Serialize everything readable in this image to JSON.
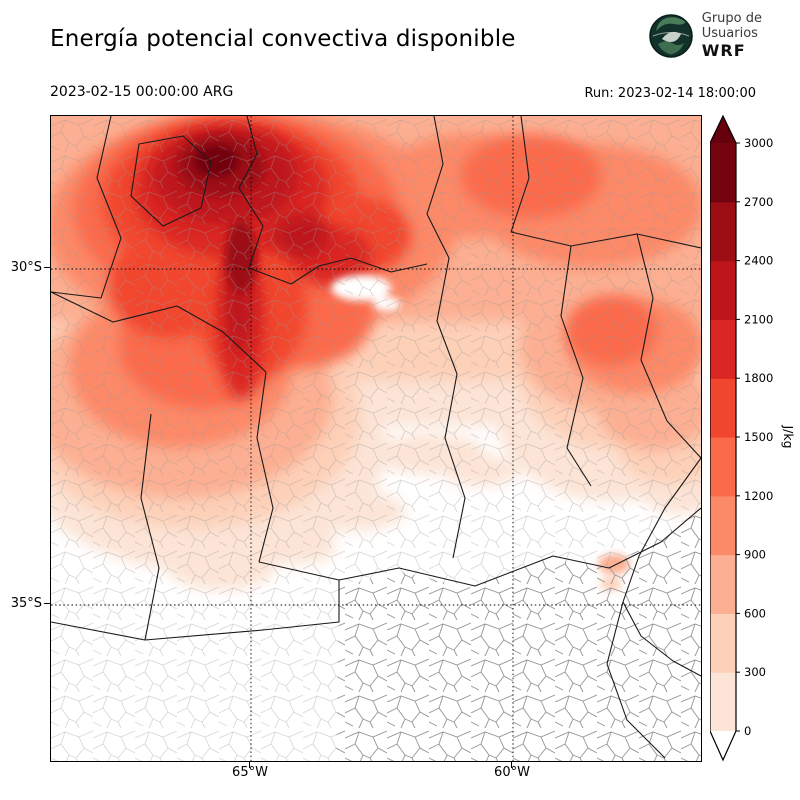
{
  "header": {
    "title": "Energía potencial convectiva disponible",
    "valid_time": "2023-02-15 00:00:00 ARG",
    "run_time": "Run: 2023-02-14 18:00:00",
    "logo": {
      "line1": "Grupo de",
      "line2": "Usuarios",
      "line3": "WRF"
    }
  },
  "map": {
    "y_tick_labels": [
      "30°S",
      "35°S"
    ],
    "x_tick_labels": [
      "65°W",
      "60°W"
    ]
  },
  "colorbar": {
    "label": "J/kg",
    "ticks": [
      0,
      300,
      600,
      900,
      1200,
      1500,
      1800,
      2100,
      2400,
      2700,
      3000
    ],
    "max_level": 3000,
    "segment_colors": [
      "#fce4d6",
      "#fdd0b8",
      "#fcaf92",
      "#fc8968",
      "#fb6b4b",
      "#f1462f",
      "#da2723",
      "#bd151a",
      "#9c0d14",
      "#73040f"
    ],
    "under_color": "#ffffff",
    "over_color": "#67000d"
  },
  "chart_data": {
    "type": "heatmap",
    "title": "Energía potencial convectiva disponible",
    "variable": "CAPE (convective available potential energy)",
    "units": "J/kg",
    "valid_time": "2023-02-15 00:00:00 ARG",
    "model_run": "Run: 2023-02-14 18:00:00",
    "contour_levels": [
      0,
      300,
      600,
      900,
      1200,
      1500,
      1800,
      2100,
      2400,
      2700,
      3000
    ],
    "colormap": "Reds (white = 0 to dark red = 3000+, arrow extensions both ends)",
    "x_axis": {
      "tick_labels": [
        "65°W",
        "60°W"
      ],
      "gridlines": "dotted"
    },
    "y_axis": {
      "tick_labels": [
        "30°S",
        "35°S"
      ],
      "gridlines": "dotted"
    },
    "legend_position": "vertical colorbar, right side",
    "description": "Filled-contour CAPE map over central-northern Argentina with province and department boundaries. Maximum CAPE above 3000 J/kg in the northwest (around 28-30°S, 65-66°W) with a dark-red tongue extending south; moderate values 900-1800 J/kg across the north and northeast; values fall to near 0 south of about 33°S. Buenos Aires province (southeast, dense department mesh) is mostly 0 except a small 600-900 J/kg patch near the Río de la Plata."
  }
}
